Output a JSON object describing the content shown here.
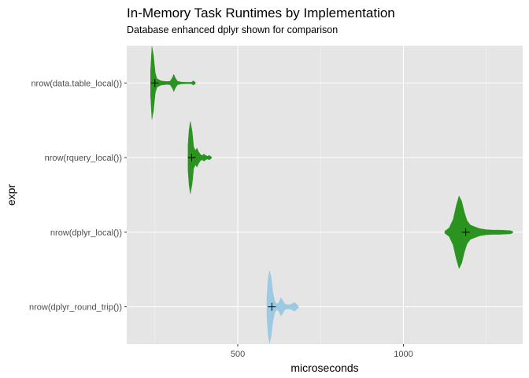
{
  "chart_data": {
    "type": "violin",
    "orientation": "horizontal",
    "title": "In-Memory Task Runtimes by Implementation",
    "subtitle": "Database enhanced dplyr shown for comparison",
    "xlabel": "microseconds",
    "ylabel": "expr",
    "xlim": [
      165,
      1360
    ],
    "x_ticks": [
      500,
      1000
    ],
    "x_tick_labels": [
      "500",
      "1000"
    ],
    "grid": true,
    "legend": "none",
    "colors": {
      "panel": "#e5e5e5",
      "grid_major": "#ffffff",
      "grid_minor": "#f2f2f2",
      "local": "#2b9420",
      "round_trip": "#9ecae1",
      "mean_marker": "#000000"
    },
    "categories": [
      "nrow(data.table_local())",
      "nrow(rquery_local())",
      "nrow(dplyr_local())",
      "nrow(dplyr_round_trip())"
    ],
    "series": [
      {
        "category": "nrow(data.table_local())",
        "color": "local",
        "mean": 250,
        "range": [
          237,
          372
        ],
        "density": [
          [
            237,
            0.35
          ],
          [
            241,
            1.0
          ],
          [
            246,
            0.75
          ],
          [
            251,
            0.28
          ],
          [
            256,
            0.12
          ],
          [
            262,
            0.09
          ],
          [
            268,
            0.06
          ],
          [
            276,
            0.05
          ],
          [
            286,
            0.04
          ],
          [
            296,
            0.05
          ],
          [
            303,
            0.15
          ],
          [
            307,
            0.24
          ],
          [
            311,
            0.15
          ],
          [
            318,
            0.05
          ],
          [
            330,
            0.025
          ],
          [
            345,
            0.02
          ],
          [
            360,
            0.02
          ],
          [
            366,
            0.06
          ],
          [
            372,
            0.02
          ]
        ]
      },
      {
        "category": "nrow(rquery_local())",
        "color": "local",
        "mean": 361,
        "range": [
          350,
          421
        ],
        "density": [
          [
            350,
            0.35
          ],
          [
            353,
            0.75
          ],
          [
            357,
            1.0
          ],
          [
            362,
            0.75
          ],
          [
            367,
            0.3
          ],
          [
            372,
            0.2
          ],
          [
            377,
            0.26
          ],
          [
            382,
            0.16
          ],
          [
            388,
            0.08
          ],
          [
            393,
            0.06
          ],
          [
            398,
            0.1
          ],
          [
            403,
            0.06
          ],
          [
            408,
            0.04
          ],
          [
            414,
            0.06
          ],
          [
            418,
            0.04
          ],
          [
            421,
            0.01
          ]
        ]
      },
      {
        "category": "nrow(dplyr_local())",
        "color": "local",
        "mean": 1188,
        "range": [
          1125,
          1330
        ],
        "density": [
          [
            1125,
            0.03
          ],
          [
            1138,
            0.12
          ],
          [
            1150,
            0.35
          ],
          [
            1160,
            0.75
          ],
          [
            1168,
            1.0
          ],
          [
            1176,
            0.85
          ],
          [
            1184,
            0.55
          ],
          [
            1192,
            0.32
          ],
          [
            1202,
            0.2
          ],
          [
            1215,
            0.15
          ],
          [
            1230,
            0.1
          ],
          [
            1250,
            0.07
          ],
          [
            1270,
            0.06
          ],
          [
            1290,
            0.06
          ],
          [
            1310,
            0.05
          ],
          [
            1322,
            0.045
          ],
          [
            1330,
            0.02
          ]
        ]
      },
      {
        "category": "nrow(dplyr_round_trip())",
        "color": "round_trip",
        "mean": 603,
        "range": [
          588,
          683
        ],
        "density": [
          [
            588,
            0.3
          ],
          [
            592,
            0.8
          ],
          [
            596,
            1.0
          ],
          [
            601,
            0.8
          ],
          [
            606,
            0.4
          ],
          [
            612,
            0.15
          ],
          [
            618,
            0.08
          ],
          [
            624,
            0.12
          ],
          [
            630,
            0.25
          ],
          [
            636,
            0.18
          ],
          [
            642,
            0.08
          ],
          [
            650,
            0.06
          ],
          [
            658,
            0.06
          ],
          [
            666,
            0.1
          ],
          [
            672,
            0.12
          ],
          [
            678,
            0.07
          ],
          [
            683,
            0.02
          ]
        ]
      }
    ]
  }
}
